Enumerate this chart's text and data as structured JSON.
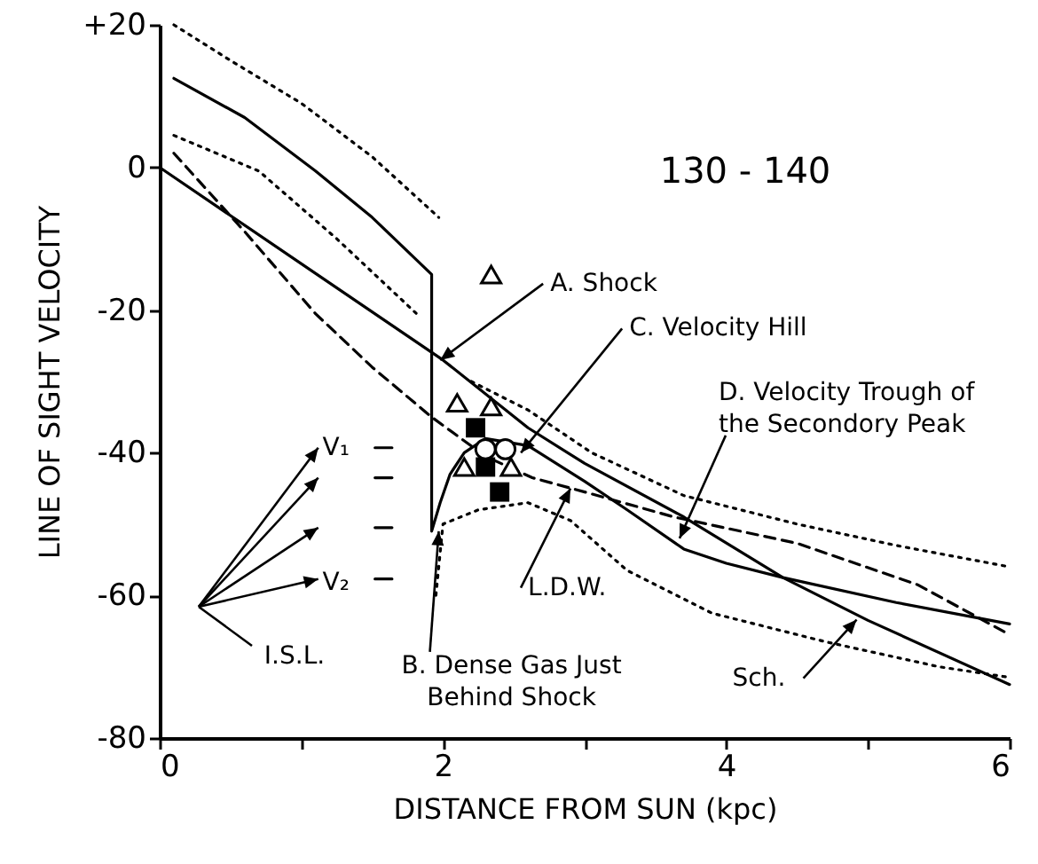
{
  "chart_data": {
    "type": "line",
    "xlabel": "DISTANCE FROM SUN (kpc)",
    "ylabel": "LINE OF SIGHT VELOCITY",
    "xlim": [
      0,
      6
    ],
    "ylim": [
      -80,
      20
    ],
    "xticks": [
      0,
      {
        "value": 1,
        "label": null
      },
      2,
      {
        "value": 3,
        "label": null
      },
      4,
      {
        "value": 5,
        "label": null
      },
      6
    ],
    "yticks": [
      {
        "value": 20,
        "label": "+20"
      },
      0,
      -20,
      -40,
      -60,
      -80
    ],
    "series": [
      {
        "line_style": "solid",
        "color": "#000000",
        "x": [
          0,
          1,
          2,
          2.6,
          3,
          3.7,
          4.4,
          5,
          6
        ],
        "values": [
          0,
          -13.5,
          -27,
          -36.5,
          -41.5,
          -49,
          -57.5,
          -63.5,
          -72.5
        ]
      },
      {
        "line_style": "solid",
        "color": "#000000",
        "x": [
          0.1,
          0.6,
          1.1,
          1.5,
          1.92,
          1.92,
          1.98,
          2.05,
          2.15,
          2.3,
          2.6,
          3,
          3.3,
          3.7,
          4,
          4.4,
          5.2,
          6
        ],
        "values": [
          12.5,
          7,
          -0.5,
          -7,
          -15,
          -51,
          -47,
          -43,
          -40,
          -38,
          -39,
          -44,
          -48,
          -53.5,
          -55.5,
          -57.5,
          -61,
          -64
        ]
      },
      {
        "line_style": "dashed",
        "color": "#000000",
        "x": [
          0.1,
          0.6,
          1.1,
          1.5,
          1.92,
          2.3,
          2.63,
          3,
          3.63,
          4.5,
          5.35,
          6
        ],
        "values": [
          2,
          -9,
          -20.5,
          -28,
          -35,
          -40.5,
          -43.5,
          -45.5,
          -49,
          -52.7,
          -58.5,
          -65.5
        ]
      },
      {
        "line_style": "dotted",
        "color": "#000000",
        "x": [
          0.1,
          0.5,
          1,
          1.5,
          1.97
        ],
        "values": [
          20,
          15,
          9,
          1.5,
          -7
        ]
      },
      {
        "line_style": "dotted",
        "color": "#000000",
        "x": [
          2.2,
          2.6,
          3.05,
          3.7,
          4.5,
          5.2,
          6
        ],
        "values": [
          -30,
          -34,
          -40,
          -46,
          -50,
          -53,
          -56
        ]
      },
      {
        "line_style": "dotted",
        "color": "#000000",
        "x": [
          0.1,
          0.7,
          1.25,
          1.84
        ],
        "values": [
          4.5,
          -0.5,
          -10,
          -21
        ]
      },
      {
        "line_style": "dotted",
        "color": "#000000",
        "x": [
          1.95,
          2,
          2.25,
          2.6,
          2.9,
          3.3,
          3.9,
          4.7,
          5.5,
          6
        ],
        "values": [
          -60,
          -50,
          -48,
          -47,
          -49.5,
          -56.5,
          -62.5,
          -66.5,
          -70,
          -71.5
        ]
      },
      {
        "type": "scatter",
        "marker": "triangle",
        "color": "#000000",
        "x": [
          2.34,
          2.1,
          2.34,
          2.15,
          2.48
        ],
        "values": [
          -15,
          -33,
          -33.5,
          -42,
          -42
        ]
      },
      {
        "type": "scatter",
        "marker": "square",
        "color": "#000000",
        "x": [
          2.23,
          2.3,
          2.4
        ],
        "values": [
          -36.5,
          -42,
          -45.5
        ]
      },
      {
        "type": "scatter",
        "marker": "circle",
        "color": "#000000",
        "x": [
          2.3,
          2.44
        ],
        "values": [
          -39.5,
          -39.5
        ]
      },
      {
        "line_style": "solid",
        "color": "#000000",
        "x": [
          1.52,
          1.64
        ],
        "values": [
          -39.3,
          -39.3
        ]
      },
      {
        "line_style": "solid",
        "color": "#000000",
        "x": [
          1.52,
          1.64
        ],
        "values": [
          -43.5,
          -43.5
        ]
      },
      {
        "line_style": "solid",
        "color": "#000000",
        "x": [
          1.52,
          1.64
        ],
        "values": [
          -50.5,
          -50.5
        ]
      },
      {
        "line_style": "solid",
        "color": "#000000",
        "x": [
          1.52,
          1.64
        ],
        "values": [
          -57.7,
          -57.7
        ]
      }
    ],
    "annotations": [
      "130 - 140",
      {
        "text": "A. Shock",
        "x": 1.98,
        "y": -27
      },
      {
        "text": "C. Velocity Hill",
        "x": 2.55,
        "y": -40
      },
      {
        "text": "D. Velocity Trough of\nthe Secondory Peak",
        "x": 3.67,
        "y": -52
      },
      {
        "text": "B. Dense Gas Just\nBehind Shock",
        "x": 1.97,
        "y": -51
      },
      {
        "text": "L.D.W.",
        "x": 2.9,
        "y": -45
      },
      {
        "text": "Sch.",
        "x": 4.92,
        "y": -63.4
      },
      "I.S.L.",
      {
        "text": "V₁",
        "x": 1.52,
        "y": -39.3
      },
      {
        "text": "V₂",
        "x": 1.52,
        "y": -57.7
      }
    ]
  }
}
